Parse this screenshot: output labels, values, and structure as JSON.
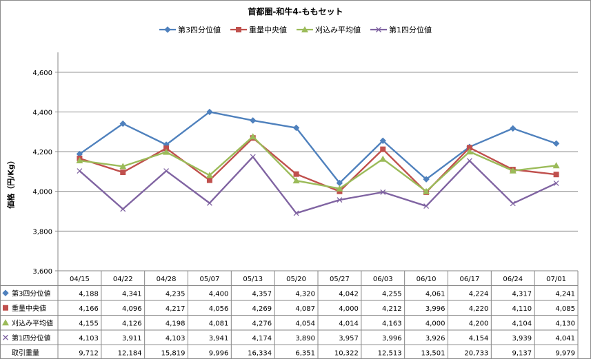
{
  "chart_data": {
    "type": "line",
    "title": "首都圏-和牛4-ももセット",
    "ylabel": "価格（円/Kg）",
    "xlabel": "",
    "ylim": [
      3600,
      4700
    ],
    "yticks": [
      3600,
      3800,
      4000,
      4200,
      4400,
      4600
    ],
    "grid": "horizontal",
    "legend_position": "top",
    "categories": [
      "04/15",
      "04/22",
      "04/28",
      "05/07",
      "05/13",
      "05/20",
      "05/27",
      "06/03",
      "06/10",
      "06/17",
      "06/24",
      "07/01"
    ],
    "series": [
      {
        "name": "第3四分位値",
        "color": "#4f81bd",
        "marker": "diamond",
        "values": [
          4188,
          4341,
          4235,
          4400,
          4357,
          4320,
          4042,
          4255,
          4061,
          4224,
          4317,
          4241
        ]
      },
      {
        "name": "重量中央値",
        "color": "#c0504d",
        "marker": "square",
        "values": [
          4166,
          4096,
          4217,
          4056,
          4269,
          4087,
          4000,
          4212,
          3996,
          4220,
          4110,
          4085
        ]
      },
      {
        "name": "刈込み平均値",
        "color": "#9bbb59",
        "marker": "triangle",
        "values": [
          4155,
          4126,
          4198,
          4081,
          4276,
          4054,
          4014,
          4163,
          4000,
          4200,
          4104,
          4130
        ]
      },
      {
        "name": "第1四分位値",
        "color": "#8064a2",
        "marker": "x",
        "values": [
          4103,
          3911,
          4103,
          3941,
          4174,
          3890,
          3957,
          3996,
          3926,
          4154,
          3939,
          4041
        ]
      }
    ],
    "table": {
      "extra_rows": [
        {
          "name": "取引重量",
          "values": [
            "9,712",
            "12,184",
            "15,819",
            "9,996",
            "16,334",
            "6,351",
            "10,322",
            "12,513",
            "13,501",
            "20,733",
            "9,137",
            "9,979"
          ]
        }
      ]
    }
  }
}
